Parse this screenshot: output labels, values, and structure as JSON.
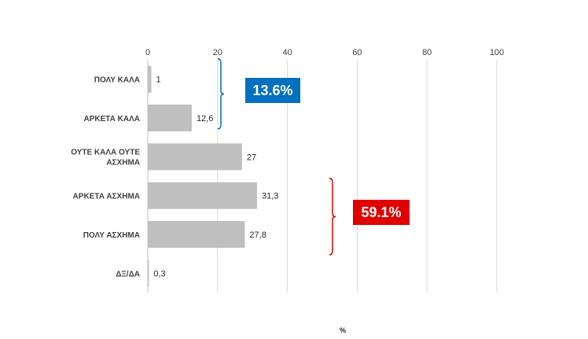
{
  "chart_data": {
    "type": "bar",
    "orientation": "horizontal",
    "categories": [
      "ΠΟΛΥ ΚΑΛΑ",
      "ΑΡΚΕΤΑ ΚΑΛΑ",
      "ΟΥΤΕ ΚΑΛΑ ΟΥΤΕ ΑΣΧΗΜΑ",
      "ΑΡΚΕΤΑ ΑΣΧΗΜΑ",
      "ΠΟΛΥ ΑΣΧΗΜΑ",
      "ΔΞ/ΔΑ"
    ],
    "values": [
      1,
      12.6,
      27,
      31.3,
      27.8,
      0.3
    ],
    "data_labels": [
      "1",
      "12,6",
      "27",
      "31,3",
      "27,8",
      "0,3"
    ],
    "xlabel": "%",
    "xlim": [
      0,
      100
    ],
    "xticks": [
      0,
      20,
      40,
      60,
      80,
      100
    ],
    "grid": "vertical",
    "bar_color": "#bfbfbf",
    "annotations": [
      {
        "text": "13.6%",
        "spans": [
          "ΠΟΛΥ ΚΑΛΑ",
          "ΑΡΚΕΤΑ ΚΑΛΑ"
        ],
        "color": "#0070c0"
      },
      {
        "text": "59.1%",
        "spans": [
          "ΑΡΚΕΤΑ ΑΣΧΗΜΑ",
          "ΠΟΛΥ ΑΣΧΗΜΑ"
        ],
        "color": "#e00000"
      }
    ]
  }
}
